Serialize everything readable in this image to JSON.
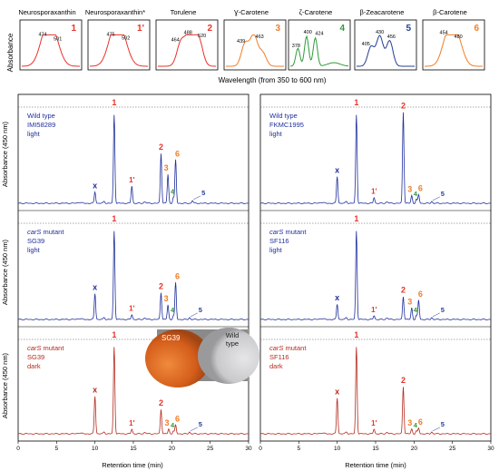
{
  "spectra": {
    "ylabel": "Absorbance",
    "xlabel": "Wavelength (from 350 to 600 nm)",
    "panels": [
      {
        "name": "Neurosporaxanthin",
        "num": "1",
        "color": "#e8322a",
        "peaks": [
          "474",
          "501"
        ]
      },
      {
        "name": "Neurosporaxanthin*",
        "num": "1'",
        "color": "#e8322a",
        "peaks": [
          "475",
          "502"
        ]
      },
      {
        "name": "Torulene",
        "num": "2",
        "color": "#e8322a",
        "peaks": [
          "464",
          "488",
          "520"
        ]
      },
      {
        "name": "Ɣ-Carotene",
        "num": "3",
        "color": "#f07d28",
        "peaks": [
          "439",
          "463"
        ]
      },
      {
        "name": "ζ-Carotene",
        "num": "4",
        "color": "#2f9a3b",
        "peaks": [
          "378",
          "400",
          "424"
        ]
      },
      {
        "name": "β-Zeacarotene",
        "num": "5",
        "color": "#233f96",
        "peaks": [
          "405",
          "430",
          "456"
        ]
      },
      {
        "name": "β-Carotene",
        "num": "6",
        "color": "#f07d28",
        "peaks": [
          "454",
          "480"
        ]
      }
    ]
  },
  "chromatograms": {
    "xlabel": "Retention time (min)",
    "ylabel": "Absorbance (450 nm)",
    "xticks": [
      "0",
      "5",
      "10",
      "15",
      "20",
      "25",
      "30"
    ],
    "panels": [
      {
        "col": 0,
        "row": 0,
        "line_color": "#1f2f9c",
        "label_lines": [
          "Wild type",
          "IMI58289",
          "light"
        ],
        "italic_first": false,
        "peaks": [
          {
            "label": "x",
            "rt": 10.0,
            "h": 0.12
          },
          {
            "label": "1",
            "rt": 12.5,
            "h": 0.92
          },
          {
            "label": "1'",
            "rt": 14.8,
            "h": 0.18
          },
          {
            "label": "2",
            "rt": 18.6,
            "h": 0.52
          },
          {
            "label": "3",
            "rt": 19.5,
            "h": 0.3
          },
          {
            "label": "6",
            "rt": 20.5,
            "h": 0.45
          },
          {
            "label": "4",
            "rt": 20.2,
            "h": 0.06
          },
          {
            "label": "5",
            "rt": 22.7,
            "h": 0.03
          }
        ]
      },
      {
        "col": 1,
        "row": 0,
        "line_color": "#1f2f9c",
        "label_lines": [
          "Wild type",
          "FKMC1995",
          "light"
        ],
        "italic_first": false,
        "peaks": [
          {
            "label": "x",
            "rt": 10.0,
            "h": 0.28
          },
          {
            "label": "1",
            "rt": 12.5,
            "h": 0.92
          },
          {
            "label": "1'",
            "rt": 14.8,
            "h": 0.06
          },
          {
            "label": "2",
            "rt": 18.6,
            "h": 0.95
          },
          {
            "label": "3",
            "rt": 19.7,
            "h": 0.08
          },
          {
            "label": "6",
            "rt": 20.6,
            "h": 0.09
          },
          {
            "label": "4",
            "rt": 20.3,
            "h": 0.04
          },
          {
            "label": "5",
            "rt": 22.3,
            "h": 0.02
          }
        ]
      },
      {
        "col": 0,
        "row": 1,
        "line_color": "#1f2f9c",
        "label_lines": [
          "carS mutant",
          "SG39",
          "light"
        ],
        "italic_first": true,
        "peaks": [
          {
            "label": "x",
            "rt": 10.0,
            "h": 0.27
          },
          {
            "label": "1",
            "rt": 12.5,
            "h": 0.92
          },
          {
            "label": "1'",
            "rt": 14.8,
            "h": 0.05
          },
          {
            "label": "2",
            "rt": 18.6,
            "h": 0.28
          },
          {
            "label": "3",
            "rt": 19.5,
            "h": 0.15
          },
          {
            "label": "6",
            "rt": 20.5,
            "h": 0.38
          },
          {
            "label": "4",
            "rt": 20.2,
            "h": 0.04
          },
          {
            "label": "5",
            "rt": 22.3,
            "h": 0.02
          }
        ]
      },
      {
        "col": 1,
        "row": 1,
        "line_color": "#1f2f9c",
        "label_lines": [
          "carS mutant",
          "SF116",
          "light"
        ],
        "italic_first": true,
        "peaks": [
          {
            "label": "x",
            "rt": 10.0,
            "h": 0.16
          },
          {
            "label": "1",
            "rt": 12.5,
            "h": 0.92
          },
          {
            "label": "1'",
            "rt": 14.8,
            "h": 0.04
          },
          {
            "label": "2",
            "rt": 18.6,
            "h": 0.24
          },
          {
            "label": "3",
            "rt": 19.7,
            "h": 0.12
          },
          {
            "label": "6",
            "rt": 20.6,
            "h": 0.2
          },
          {
            "label": "4",
            "rt": 20.3,
            "h": 0.04
          },
          {
            "label": "5",
            "rt": 22.3,
            "h": 0.02
          }
        ]
      },
      {
        "col": 0,
        "row": 2,
        "line_color": "#b52a1e",
        "label_lines": [
          "carS mutant",
          "SG39",
          "dark"
        ],
        "italic_first": true,
        "peaks": [
          {
            "label": "x",
            "rt": 10.0,
            "h": 0.4
          },
          {
            "label": "1",
            "rt": 12.5,
            "h": 0.92
          },
          {
            "label": "1'",
            "rt": 14.8,
            "h": 0.05
          },
          {
            "label": "2",
            "rt": 18.6,
            "h": 0.26
          },
          {
            "label": "3",
            "rt": 19.6,
            "h": 0.05
          },
          {
            "label": "6",
            "rt": 20.5,
            "h": 0.09
          },
          {
            "label": "4",
            "rt": 20.2,
            "h": 0.03
          },
          {
            "label": "5",
            "rt": 22.3,
            "h": 0.02
          }
        ]
      },
      {
        "col": 1,
        "row": 2,
        "line_color": "#b52a1e",
        "label_lines": [
          "carS mutant",
          "SF116",
          "dark"
        ],
        "italic_first": true,
        "peaks": [
          {
            "label": "x",
            "rt": 10.0,
            "h": 0.38
          },
          {
            "label": "1",
            "rt": 12.5,
            "h": 0.92
          },
          {
            "label": "1'",
            "rt": 14.8,
            "h": 0.05
          },
          {
            "label": "2",
            "rt": 18.6,
            "h": 0.5
          },
          {
            "label": "3",
            "rt": 19.7,
            "h": 0.05
          },
          {
            "label": "6",
            "rt": 20.6,
            "h": 0.06
          },
          {
            "label": "4",
            "rt": 20.3,
            "h": 0.03
          },
          {
            "label": "5",
            "rt": 22.3,
            "h": 0.02
          }
        ]
      }
    ],
    "photo": {
      "left_label": "SG39",
      "right_label_lines": [
        "Wild",
        "type"
      ]
    }
  },
  "peak_colors": {
    "1": "#e8322a",
    "1'": "#e8322a",
    "2": "#e8322a",
    "3": "#f07d28",
    "6": "#f07d28",
    "4": "#2f9a3b",
    "5": "#233f96"
  },
  "chart_data": {
    "type": "line",
    "xlabel": "Retention time (min)",
    "ylabel": "Absorbance (450 nm)",
    "xlim": [
      0,
      30
    ],
    "series": [
      {
        "name": "Wild type IMI58289 light",
        "peaks_rt": [
          10.0,
          12.5,
          14.8,
          18.6,
          19.5,
          20.2,
          20.5,
          22.7
        ]
      },
      {
        "name": "Wild type FKMC1995 light",
        "peaks_rt": [
          10.0,
          12.5,
          14.8,
          18.6,
          19.7,
          20.3,
          20.6,
          22.3
        ]
      },
      {
        "name": "carS mutant SG39 light",
        "peaks_rt": [
          10.0,
          12.5,
          14.8,
          18.6,
          19.5,
          20.2,
          20.5,
          22.3
        ]
      },
      {
        "name": "carS mutant SF116 light",
        "peaks_rt": [
          10.0,
          12.5,
          14.8,
          18.6,
          19.7,
          20.3,
          20.6,
          22.3
        ]
      },
      {
        "name": "carS mutant SG39 dark",
        "peaks_rt": [
          10.0,
          12.5,
          14.8,
          18.6,
          19.6,
          20.2,
          20.5,
          22.3
        ]
      },
      {
        "name": "carS mutant SF116 dark",
        "peaks_rt": [
          10.0,
          12.5,
          14.8,
          18.6,
          19.7,
          20.3,
          20.6,
          22.3
        ]
      }
    ]
  }
}
